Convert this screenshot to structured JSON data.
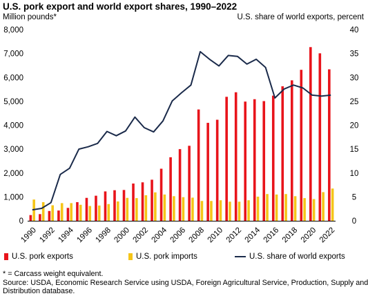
{
  "header": {
    "title": "U.S. pork export and world export shares, 1990–2022",
    "left_axis_label": "Million pounds*",
    "right_axis_label": "U.S. share of world exports, percent"
  },
  "legend": {
    "exports_label": "U.S. pork exports",
    "imports_label": "U.S. pork imports",
    "share_label": "U.S. share of world exports"
  },
  "footnote": {
    "note": "* = Carcass weight equivalent.",
    "source_line1": "Source: USDA, Economic Research Service using USDA, Foreign Agricultural Service, Production, Supply and",
    "source_line2": "Distribution database."
  },
  "colors": {
    "exports": "#e8141b",
    "imports": "#f5c518",
    "share": "#1a2a4a",
    "axis": "#000000"
  },
  "chart_data": {
    "type": "bar",
    "title": "U.S. pork export and world export shares, 1990–2022",
    "ylabel": "Million pounds*",
    "y2label": "U.S. share of world exports, percent",
    "ylim": [
      0,
      8000
    ],
    "y2lim": [
      0,
      40
    ],
    "categories": [
      1990,
      1991,
      1992,
      1993,
      1994,
      1995,
      1996,
      1997,
      1998,
      1999,
      2000,
      2001,
      2002,
      2003,
      2004,
      2005,
      2006,
      2007,
      2008,
      2009,
      2010,
      2011,
      2012,
      2013,
      2014,
      2015,
      2016,
      2017,
      2018,
      2019,
      2020,
      2021,
      2022
    ],
    "x_tick_labels": [
      "1990",
      "1992",
      "1994",
      "1996",
      "1998",
      "2000",
      "2002",
      "2004",
      "2006",
      "2008",
      "2010",
      "2012",
      "2014",
      "2016",
      "2018",
      "2020",
      "2022"
    ],
    "y_tick_labels": [
      "0",
      "1,000",
      "2,000",
      "3,000",
      "4,000",
      "5,000",
      "6,000",
      "7,000",
      "8,000"
    ],
    "y2_tick_labels": [
      "0",
      "5",
      "10",
      "15",
      "20",
      "25",
      "30",
      "35",
      "40"
    ],
    "series": [
      {
        "name": "U.S. pork exports",
        "kind": "bar",
        "values": [
          240,
          280,
          410,
          430,
          540,
          780,
          960,
          1050,
          1230,
          1280,
          1290,
          1560,
          1610,
          1720,
          2180,
          2660,
          3000,
          3140,
          4660,
          4100,
          4230,
          5190,
          5380,
          4990,
          5090,
          5010,
          5240,
          5630,
          5880,
          6320,
          7270,
          7010,
          6340
        ]
      },
      {
        "name": "U.S. pork imports",
        "kind": "bar",
        "values": [
          890,
          780,
          650,
          740,
          740,
          670,
          620,
          640,
          700,
          810,
          960,
          950,
          1070,
          1190,
          1100,
          1030,
          990,
          970,
          830,
          830,
          860,
          800,
          800,
          860,
          1010,
          1120,
          1100,
          1120,
          1030,
          950,
          910,
          1200,
          1350
        ]
      },
      {
        "name": "U.S. share of world exports",
        "kind": "line",
        "axis": "right",
        "values": [
          2.3,
          2.6,
          3.8,
          9.7,
          11.0,
          15.0,
          15.5,
          16.2,
          18.7,
          17.8,
          18.8,
          21.7,
          19.5,
          18.6,
          20.9,
          25.1,
          26.8,
          28.4,
          35.4,
          33.8,
          32.4,
          34.6,
          34.4,
          32.8,
          33.8,
          32.1,
          25.7,
          27.6,
          28.4,
          27.8,
          26.3,
          26.1,
          26.3
        ]
      }
    ],
    "grid": false,
    "legend_position": "bottom"
  }
}
